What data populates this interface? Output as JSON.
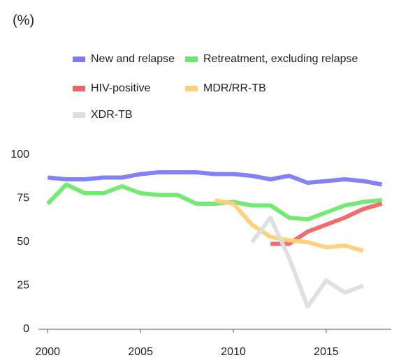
{
  "chart_data": {
    "type": "line",
    "y_label": "(%)",
    "x": [
      2000,
      2001,
      2002,
      2003,
      2004,
      2005,
      2006,
      2007,
      2008,
      2009,
      2010,
      2011,
      2012,
      2013,
      2014,
      2015,
      2016,
      2017,
      2018
    ],
    "series": [
      {
        "name": "New and relapse",
        "color": "#7b7bf5",
        "values": [
          87,
          86,
          86,
          87,
          87,
          89,
          90,
          90,
          90,
          89,
          89,
          88,
          86,
          88,
          84,
          85,
          86,
          85,
          83
        ]
      },
      {
        "name": "Retreatment, excluding relapse",
        "color": "#6de86d",
        "values": [
          72,
          83,
          78,
          78,
          82,
          78,
          77,
          77,
          72,
          72,
          73,
          71,
          71,
          64,
          63,
          67,
          71,
          73,
          74
        ]
      },
      {
        "name": "HIV-positive",
        "color": "#f06464",
        "values": [
          null,
          null,
          null,
          null,
          null,
          null,
          null,
          null,
          null,
          null,
          null,
          null,
          49,
          49,
          56,
          60,
          64,
          69,
          72
        ]
      },
      {
        "name": "MDR/RR-TB",
        "color": "#fdd07a",
        "values": [
          null,
          null,
          null,
          null,
          null,
          null,
          null,
          null,
          null,
          74,
          72,
          60,
          53,
          51,
          50,
          47,
          48,
          45,
          null
        ]
      },
      {
        "name": "XDR-TB",
        "color": "#dedede",
        "values": [
          null,
          null,
          null,
          null,
          null,
          null,
          null,
          null,
          null,
          null,
          null,
          50,
          64,
          41,
          13,
          28,
          21,
          25,
          null
        ]
      }
    ],
    "xlim": [
      1999.5,
      2018.5
    ],
    "xticks": [
      2000,
      2005,
      2010,
      2015
    ],
    "ylim": [
      0,
      100
    ],
    "yticks": [
      0,
      25,
      50,
      75,
      100
    ],
    "grid": false
  }
}
